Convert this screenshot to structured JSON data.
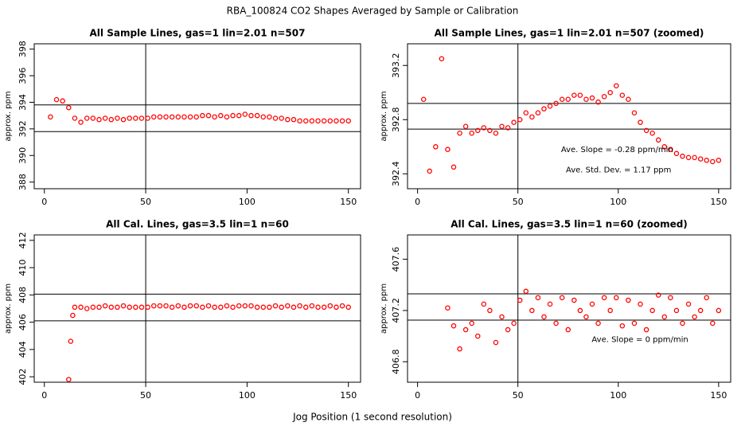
{
  "title": "RBA_100824  CO2 Shapes Averaged by Sample or Calibration",
  "xlabel": "Jog Position (1 second resolution)",
  "chart_data": [
    {
      "type": "scatter",
      "title": "All Sample Lines, gas=1 lin=2.01 n=507",
      "ylabel": "approx. ppm",
      "color": "#ff0000",
      "x": [
        3,
        6,
        9,
        12,
        15,
        18,
        21,
        24,
        27,
        30,
        33,
        36,
        39,
        42,
        45,
        48,
        51,
        54,
        57,
        60,
        63,
        66,
        69,
        72,
        75,
        78,
        81,
        84,
        87,
        90,
        93,
        96,
        99,
        102,
        105,
        108,
        111,
        114,
        117,
        120,
        123,
        126,
        129,
        132,
        135,
        138,
        141,
        144,
        147,
        150
      ],
      "y": [
        392.9,
        394.2,
        394.1,
        393.6,
        392.8,
        392.5,
        392.8,
        392.8,
        392.7,
        392.8,
        392.7,
        392.8,
        392.7,
        392.8,
        392.8,
        392.8,
        392.8,
        392.9,
        392.9,
        392.9,
        392.9,
        392.9,
        392.9,
        392.9,
        392.9,
        393.0,
        393.0,
        392.9,
        393.0,
        392.9,
        393.0,
        393.0,
        393.1,
        393.0,
        393.0,
        392.9,
        392.9,
        392.8,
        392.8,
        392.7,
        392.7,
        392.6,
        392.6,
        392.6,
        392.6,
        392.6,
        392.6,
        392.6,
        392.6,
        392.6
      ],
      "xlim": [
        -5,
        156
      ],
      "ylim": [
        387.5,
        398.4
      ],
      "xticks": [
        0,
        50,
        100,
        150
      ],
      "yticks": [
        388,
        390,
        392,
        394,
        396,
        398
      ],
      "hlines": [
        393.8,
        391.8
      ],
      "vlines": [
        50
      ],
      "annotations": []
    },
    {
      "type": "scatter",
      "title": "All Sample Lines, gas=1 lin=2.01 n=507 (zoomed)",
      "ylabel": "approx. ppm",
      "color": "#ff0000",
      "x": [
        3,
        6,
        9,
        12,
        15,
        18,
        21,
        24,
        27,
        30,
        33,
        36,
        39,
        42,
        45,
        48,
        51,
        54,
        57,
        60,
        63,
        66,
        69,
        72,
        75,
        78,
        81,
        84,
        87,
        90,
        93,
        96,
        99,
        102,
        105,
        108,
        111,
        114,
        117,
        120,
        123,
        126,
        129,
        132,
        135,
        138,
        141,
        144,
        147,
        150
      ],
      "y": [
        392.95,
        392.42,
        392.6,
        393.25,
        392.58,
        392.45,
        392.7,
        392.75,
        392.7,
        392.72,
        392.74,
        392.72,
        392.7,
        392.75,
        392.74,
        392.78,
        392.8,
        392.85,
        392.82,
        392.85,
        392.88,
        392.9,
        392.92,
        392.95,
        392.95,
        392.98,
        392.98,
        392.95,
        392.96,
        392.93,
        392.97,
        393.0,
        393.05,
        392.98,
        392.95,
        392.85,
        392.78,
        392.72,
        392.7,
        392.65,
        392.6,
        392.58,
        392.55,
        392.53,
        392.52,
        392.52,
        392.51,
        392.5,
        392.49,
        392.5
      ],
      "xlim": [
        -5,
        156
      ],
      "ylim": [
        392.29,
        393.36
      ],
      "xticks": [
        0,
        50,
        100,
        150
      ],
      "yticks": [
        392.4,
        392.8,
        393.2
      ],
      "hlines": [
        392.92,
        392.73
      ],
      "vlines": [
        50
      ],
      "annotations": [
        "Ave. Slope =  -0.28  ppm/min",
        "Ave. Std. Dev. =  1.17  ppm"
      ]
    },
    {
      "type": "scatter",
      "title": "All Cal. Lines, gas=3.5 lin=1 n=60",
      "ylabel": "approx. ppm",
      "color": "#ff0000",
      "x": [
        12,
        13,
        14,
        15,
        18,
        21,
        24,
        27,
        30,
        33,
        36,
        39,
        42,
        45,
        48,
        51,
        54,
        57,
        60,
        63,
        66,
        69,
        72,
        75,
        78,
        81,
        84,
        87,
        90,
        93,
        96,
        99,
        102,
        105,
        108,
        111,
        114,
        117,
        120,
        123,
        126,
        129,
        132,
        135,
        138,
        141,
        144,
        147,
        150
      ],
      "y": [
        401.8,
        404.6,
        406.5,
        407.1,
        407.1,
        407.0,
        407.1,
        407.1,
        407.2,
        407.1,
        407.1,
        407.2,
        407.1,
        407.1,
        407.1,
        407.1,
        407.2,
        407.2,
        407.2,
        407.1,
        407.2,
        407.1,
        407.2,
        407.2,
        407.1,
        407.2,
        407.1,
        407.1,
        407.2,
        407.1,
        407.2,
        407.2,
        407.2,
        407.1,
        407.1,
        407.1,
        407.2,
        407.1,
        407.2,
        407.1,
        407.2,
        407.1,
        407.2,
        407.1,
        407.1,
        407.2,
        407.1,
        407.2,
        407.1
      ],
      "xlim": [
        -5,
        156
      ],
      "ylim": [
        401.6,
        412.4
      ],
      "xticks": [
        0,
        50,
        100,
        150
      ],
      "yticks": [
        402,
        404,
        406,
        408,
        410,
        412
      ],
      "hlines": [
        408.06,
        406.1
      ],
      "vlines": [
        50
      ],
      "annotations": []
    },
    {
      "type": "scatter",
      "title": "All Cal. Lines, gas=3.5 lin=1 n=60 (zoomed)",
      "ylabel": "approx. ppm",
      "color": "#ff0000",
      "x": [
        15,
        18,
        21,
        24,
        27,
        30,
        33,
        36,
        39,
        42,
        45,
        48,
        51,
        54,
        57,
        60,
        63,
        66,
        69,
        72,
        75,
        78,
        81,
        84,
        87,
        90,
        93,
        96,
        99,
        102,
        105,
        108,
        111,
        114,
        117,
        120,
        123,
        126,
        129,
        132,
        135,
        138,
        141,
        144,
        147,
        150
      ],
      "y": [
        407.22,
        407.08,
        406.9,
        407.05,
        407.1,
        407.0,
        407.25,
        407.2,
        406.95,
        407.15,
        407.05,
        407.1,
        407.28,
        407.35,
        407.2,
        407.3,
        407.15,
        407.25,
        407.1,
        407.3,
        407.05,
        407.28,
        407.2,
        407.15,
        407.25,
        407.1,
        407.3,
        407.2,
        407.3,
        407.08,
        407.28,
        407.1,
        407.25,
        407.05,
        407.2,
        407.32,
        407.15,
        407.3,
        407.2,
        407.1,
        407.25,
        407.15,
        407.2,
        407.3,
        407.1,
        407.2
      ],
      "xlim": [
        -5,
        156
      ],
      "ylim": [
        406.64,
        407.79
      ],
      "xticks": [
        0,
        50,
        100,
        150
      ],
      "yticks": [
        406.8,
        407.2,
        407.6
      ],
      "hlines": [
        407.33,
        407.125
      ],
      "vlines": [
        50
      ],
      "annotations": [
        "Ave. Slope =  0  ppm/min"
      ]
    }
  ]
}
